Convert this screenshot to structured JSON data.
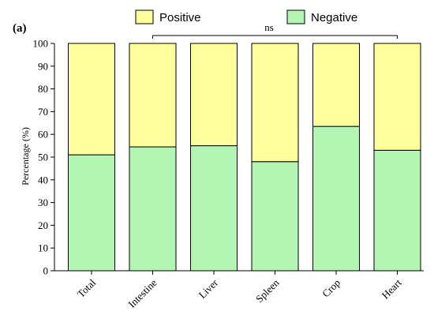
{
  "panel_label": "(a)",
  "chart_data": {
    "type": "bar",
    "stacked": true,
    "categories": [
      "Total",
      "Intestine",
      "Liver",
      "Spleen",
      "Crop",
      "Heart"
    ],
    "series": [
      {
        "name": "Negative",
        "color": "#b3f5b3",
        "values": [
          51,
          54.5,
          55,
          48,
          63.5,
          53
        ]
      },
      {
        "name": "Positive",
        "color": "#ffff9e",
        "values": [
          49,
          45.5,
          45,
          52,
          36.5,
          47
        ]
      }
    ],
    "ylabel": "Percentage (%)",
    "xlabel": "",
    "ylim": [
      0,
      100
    ],
    "yticks": [
      0,
      10,
      20,
      30,
      40,
      50,
      60,
      70,
      80,
      90,
      100
    ],
    "legend": {
      "position": "top",
      "entries": [
        "Positive",
        "Negative"
      ]
    },
    "annotation": {
      "text": "ns",
      "from": "Intestine",
      "to": "Heart"
    },
    "grid": false
  }
}
